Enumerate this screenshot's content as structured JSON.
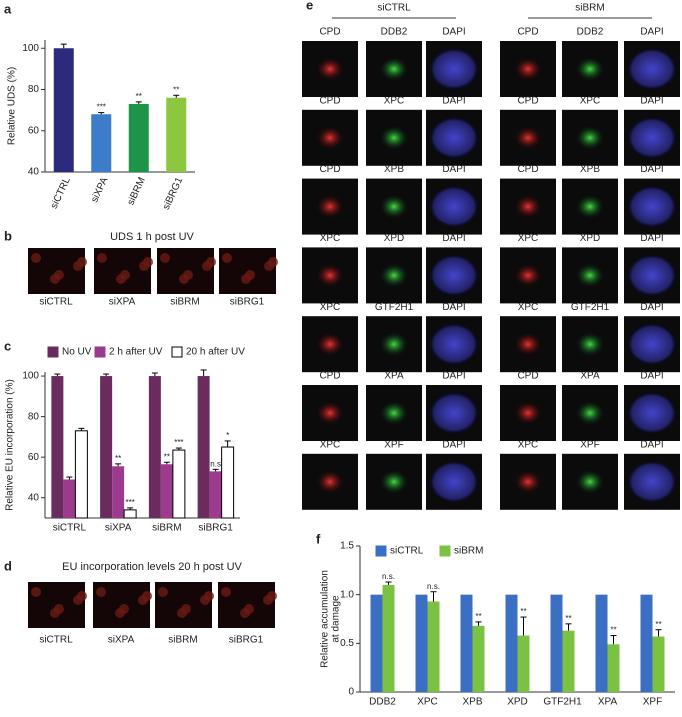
{
  "chart_data": [
    {
      "type": "bar",
      "panel": "a",
      "ylabel": "Relative UDS (%)",
      "categories": [
        "siCTRL",
        "siXPA",
        "siBRM",
        "siBRG1"
      ],
      "values": [
        100,
        68,
        73,
        76
      ],
      "errors": [
        2,
        0.8,
        1,
        1.2
      ],
      "significance": [
        null,
        "***",
        "**",
        "**"
      ],
      "colors": [
        "#2b2a7c",
        "#3d7cc9",
        "#1e9448",
        "#8dc63f"
      ],
      "ylim": [
        40,
        104
      ],
      "yticks": [
        40,
        60,
        80,
        100
      ]
    },
    {
      "type": "grouped-bar",
      "panel": "c",
      "ylabel": [
        "Relative EU incorporation (%)"
      ],
      "categories": [
        "siCTRL",
        "siXPA",
        "siBRM",
        "siBRG1"
      ],
      "series": [
        {
          "name": "No UV",
          "color": "#6a2c5e",
          "values": [
            100,
            100,
            100,
            100
          ],
          "errors": [
            1,
            1,
            1.5,
            3
          ]
        },
        {
          "name": "2 h after UV",
          "color": "#9c3b8d",
          "values": [
            49,
            55.5,
            56.5,
            53
          ],
          "errors": [
            1.2,
            1.2,
            1,
            1
          ],
          "significance": [
            null,
            "**",
            "**",
            "n.s"
          ]
        },
        {
          "name": "20 h after UV",
          "color": "#ffffff",
          "values": [
            73,
            34,
            63.5,
            65
          ],
          "errors": [
            1.2,
            1,
            1,
            3
          ],
          "significance": [
            null,
            "***",
            "***",
            "*"
          ]
        }
      ],
      "ylim": [
        30,
        102
      ],
      "yticks": [
        40,
        60,
        80,
        100
      ]
    },
    {
      "type": "grouped-bar",
      "panel": "f",
      "ylabel": [
        "Relative accumulation",
        "at damage"
      ],
      "categories": [
        "DDB2",
        "XPC",
        "XPB",
        "XPD",
        "GTF2H1",
        "XPA",
        "XPF"
      ],
      "series": [
        {
          "name": "siCTRL",
          "color": "#3b6fc4",
          "values": [
            1,
            1,
            1,
            1,
            1,
            1,
            1
          ]
        },
        {
          "name": "siBRM",
          "color": "#7cc242",
          "values": [
            1.1,
            0.93,
            0.68,
            0.58,
            0.63,
            0.49,
            0.57
          ],
          "errors": [
            0.03,
            0.1,
            0.04,
            0.19,
            0.07,
            0.09,
            0.07
          ],
          "significance": [
            "n.s.",
            "n.s.",
            "**",
            "**",
            "**",
            "**",
            "**"
          ]
        }
      ],
      "ylim": [
        0,
        1.5
      ],
      "yticks": [
        0,
        0.5,
        {
          "value": 1,
          "label": "1.0"
        },
        1.5
      ]
    }
  ],
  "panels": {
    "b": {
      "letter": "b",
      "title": "UDS 1 h post UV",
      "labels": [
        "siCTRL",
        "siXPA",
        "siBRM",
        "siBRG1"
      ]
    },
    "d": {
      "letter": "d",
      "title": "EU incorporation levels 20 h post UV",
      "labels": [
        "siCTRL",
        "siXPA",
        "siBRM",
        "siBRG1"
      ]
    },
    "e": {
      "letter": "e",
      "groups": [
        {
          "title": "siCTRL",
          "rows": [
            [
              "CPD",
              "DDB2",
              "DAPI"
            ],
            [
              "CPD",
              "XPC",
              "DAPI"
            ],
            [
              "CPD",
              "XPB",
              "DAPI"
            ],
            [
              "XPC",
              "XPD",
              "DAPI"
            ],
            [
              "XPC",
              "GTF2H1",
              "DAPI"
            ],
            [
              "CPD",
              "XPA",
              "DAPI"
            ],
            [
              "XPC",
              "XPF",
              "DAPI"
            ]
          ]
        },
        {
          "title": "siBRM",
          "rows": [
            [
              "CPD",
              "DDB2",
              "DAPI"
            ],
            [
              "CPD",
              "XPC",
              "DAPI"
            ],
            [
              "CPD",
              "XPB",
              "DAPI"
            ],
            [
              "XPC",
              "XPD",
              "DAPI"
            ],
            [
              "XPC",
              "GTF2H1",
              "DAPI"
            ],
            [
              "CPD",
              "XPA",
              "DAPI"
            ],
            [
              "XPC",
              "XPF",
              "DAPI"
            ]
          ]
        }
      ]
    }
  }
}
